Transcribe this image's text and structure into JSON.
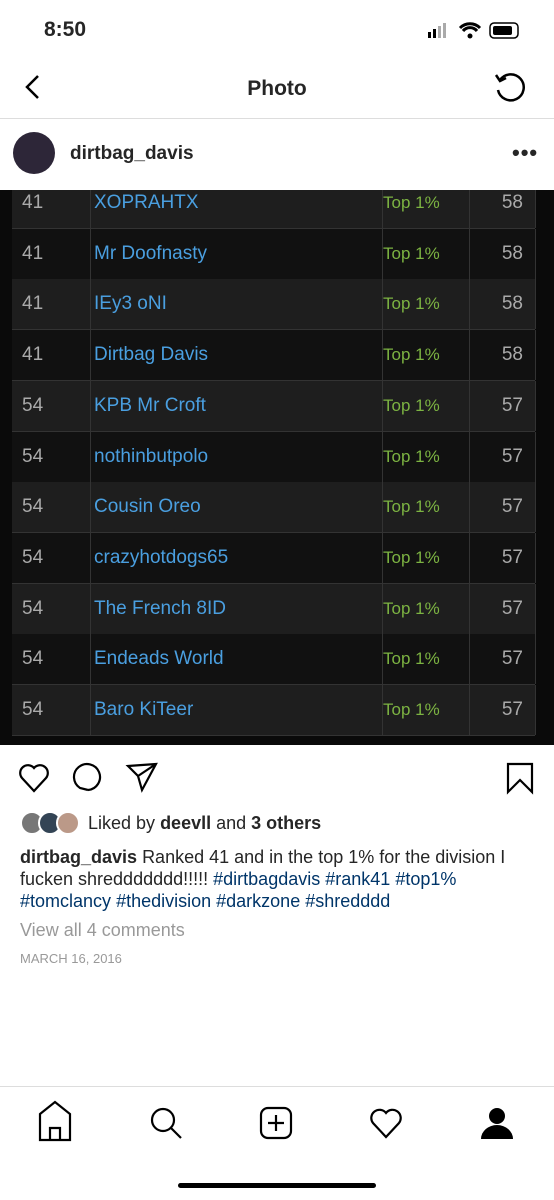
{
  "status_bar": {
    "time": "8:50"
  },
  "header": {
    "title": "Photo"
  },
  "post": {
    "username": "dirtbag_davis"
  },
  "table": {
    "rows": [
      [
        "41",
        "XOPRAHTX",
        "Top 1%",
        "58"
      ],
      [
        "41",
        "Mr Doofnasty",
        "Top 1%",
        "58"
      ],
      [
        "41",
        "IEy3 oNI",
        "Top 1%",
        "58"
      ],
      [
        "41",
        "Dirtbag Davis",
        "Top 1%",
        "58"
      ],
      [
        "54",
        "KPB Mr Croft",
        "Top 1%",
        "57"
      ],
      [
        "54",
        "nothinbutpolo",
        "Top 1%",
        "57"
      ],
      [
        "54",
        "Cousin Oreo",
        "Top 1%",
        "57"
      ],
      [
        "54",
        "crazyhotdogs65",
        "Top 1%",
        "57"
      ],
      [
        "54",
        "The French 8ID",
        "Top 1%",
        "57"
      ],
      [
        "54",
        "Endeads World",
        "Top 1%",
        "57"
      ],
      [
        "54",
        "Baro KiTeer",
        "Top 1%",
        "57"
      ]
    ]
  },
  "likes": {
    "prefix": "Liked by",
    "user": "deevll",
    "joiner": "and",
    "others": "3 others"
  },
  "caption": {
    "username": "dirtbag_davis",
    "text": "Ranked 41 and in the top 1% for the division I fucken shreddddddd!!!!!",
    "hashtags": [
      "#dirtbagdavis",
      "#rank41",
      "#top1%",
      "#tomclancy",
      "#thedivision",
      "#darkzone",
      "#shredddd"
    ]
  },
  "comments": {
    "link": "View all 4 comments"
  },
  "date": "MARCH 16, 2016"
}
